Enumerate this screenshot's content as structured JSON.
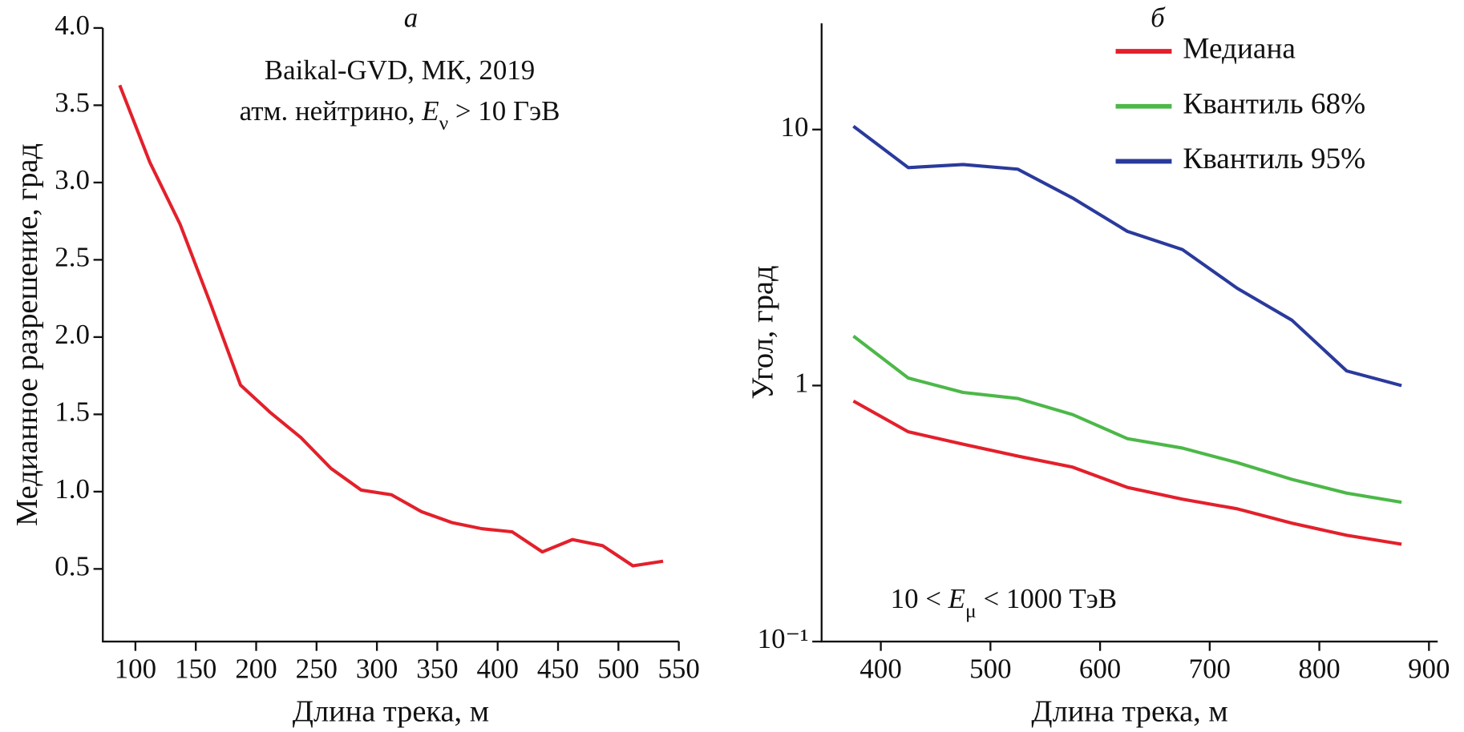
{
  "chart_data": [
    {
      "type": "line",
      "panel_label": "а",
      "xlabel": "Длина трека, м",
      "ylabel": "Медианное разрешение, град",
      "annotations": [
        [
          "Baikal-GVD, МК, 2019"
        ],
        [
          "атм. нейтрино, ",
          "E",
          "ν",
          " > 10 ГэВ"
        ]
      ],
      "xlim": [
        73,
        550
      ],
      "ylim": [
        0.03,
        4.0
      ],
      "xticks": [
        100,
        150,
        200,
        250,
        300,
        350,
        400,
        450,
        500,
        550
      ],
      "yticks": [
        0.5,
        {
          "value": 1,
          "label": "1.0"
        },
        1.5,
        {
          "value": 2,
          "label": "2.0"
        },
        2.5,
        {
          "value": 3,
          "label": "3.0"
        },
        3.5,
        {
          "value": 4,
          "label": "4.0"
        }
      ],
      "log_y": false,
      "x": [
        87,
        112,
        137,
        162,
        187,
        212,
        237,
        262,
        287,
        312,
        337,
        362,
        387,
        412,
        437,
        462,
        487,
        512,
        537
      ],
      "series": [
        {
          "color": "#e3202b",
          "values": [
            3.63,
            3.13,
            2.73,
            2.22,
            1.69,
            1.51,
            1.35,
            1.15,
            1.01,
            0.98,
            0.87,
            0.8,
            0.76,
            0.74,
            0.61,
            0.69,
            0.65,
            0.52,
            0.55
          ]
        }
      ]
    },
    {
      "type": "line",
      "panel_label": "б",
      "xlabel": "Длина трека, м",
      "ylabel": "Угол, град",
      "annotations": [
        [
          "10 < ",
          "E",
          "μ",
          " < 1000 ТэВ"
        ]
      ],
      "xlim": [
        346,
        908
      ],
      "ylim": [
        0.1,
        26
      ],
      "log_y": true,
      "xticks": [
        400,
        500,
        600,
        700,
        800,
        900
      ],
      "yticks": [
        {
          "value": 0.1,
          "label": "10⁻¹"
        },
        1,
        10
      ],
      "legend": "upper right",
      "x": [
        375,
        425,
        475,
        525,
        575,
        625,
        675,
        725,
        775,
        825,
        875
      ],
      "series": [
        {
          "name": "Медиана",
          "color": "#e3202b",
          "values": [
            0.87,
            0.66,
            0.59,
            0.53,
            0.48,
            0.4,
            0.36,
            0.33,
            0.29,
            0.26,
            0.24
          ]
        },
        {
          "name": "Квантиль 68%",
          "color": "#4cb848",
          "values": [
            1.56,
            1.07,
            0.94,
            0.89,
            0.77,
            0.62,
            0.57,
            0.5,
            0.43,
            0.38,
            0.35
          ]
        },
        {
          "name": "Квантиль 95%",
          "color": "#2a3a9c",
          "values": [
            10.3,
            7.1,
            7.3,
            7.0,
            5.4,
            4.0,
            3.4,
            2.4,
            1.8,
            1.14,
            1.0
          ]
        }
      ]
    }
  ]
}
